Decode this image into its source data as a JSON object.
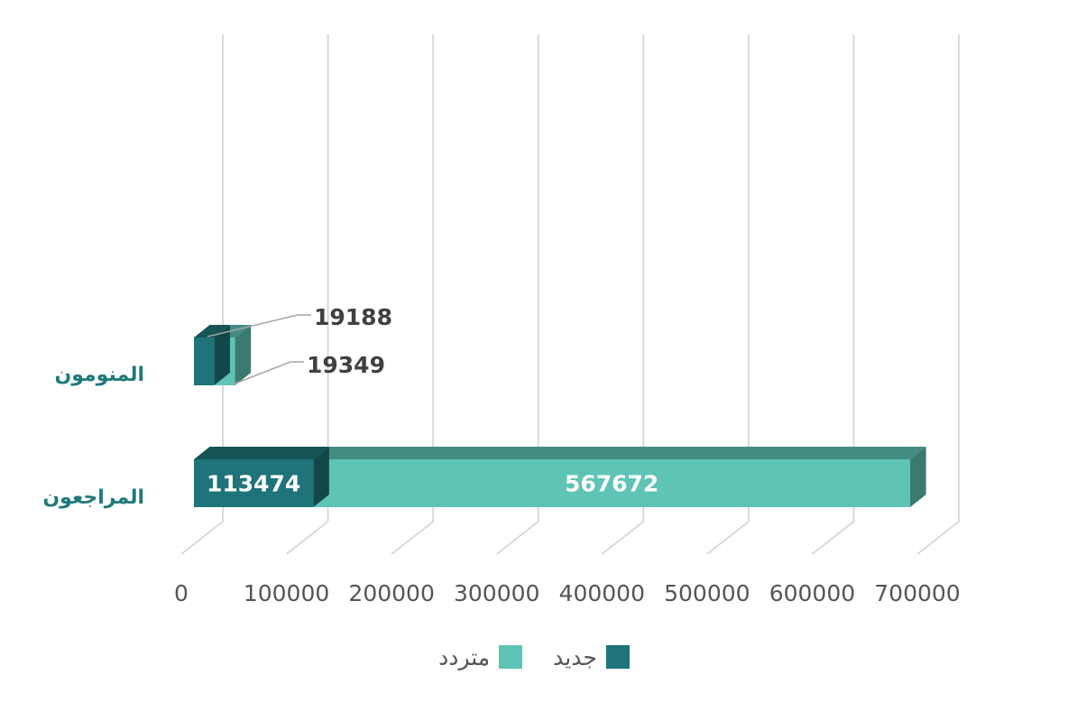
{
  "chart_data": {
    "type": "bar",
    "orientation": "horizontal",
    "stacked_categories": [
      "المراجعون"
    ],
    "categories": [
      "المنومون",
      "المراجعون"
    ],
    "series": [
      {
        "name": "جديد",
        "color": "#1f7479",
        "values": [
          19188,
          113474
        ]
      },
      {
        "name": "متردد",
        "color": "#5ec4b6",
        "values": [
          19349,
          567672
        ]
      }
    ],
    "x_ticks": [
      "0",
      "100000",
      "200000",
      "300000",
      "400000",
      "500000",
      "600000",
      "700000"
    ],
    "xlim": [
      0,
      700000
    ],
    "grid": true,
    "legend_position": "bottom",
    "style": "3d"
  }
}
